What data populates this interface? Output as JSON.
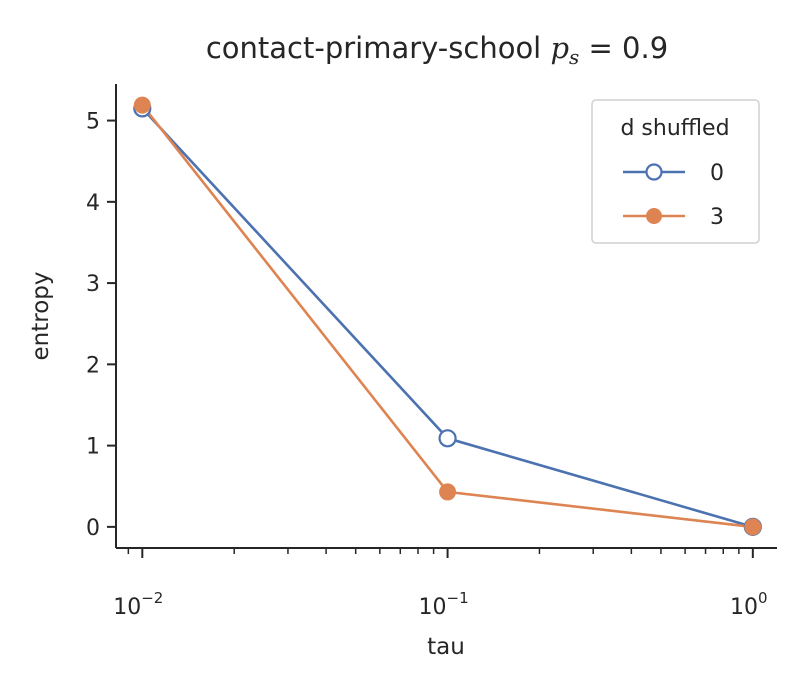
{
  "chart_data": {
    "type": "line",
    "title_main": "contact-primary-school ",
    "title_math_var": "p",
    "title_math_sub": "s",
    "title_math_rest": " = 0.9",
    "xlabel": "tau",
    "ylabel": "entropy",
    "xscale": "log",
    "xlim": [
      0.0082,
      1.2
    ],
    "ylim": [
      -0.26,
      5.45
    ],
    "x_tick_base": "10",
    "x_ticks": [
      {
        "value": 0.01,
        "exp": "−2"
      },
      {
        "value": 0.1,
        "exp": "−1"
      },
      {
        "value": 1,
        "exp": "0"
      }
    ],
    "y_ticks": [
      {
        "value": 0,
        "label": "0"
      },
      {
        "value": 1,
        "label": "1"
      },
      {
        "value": 2,
        "label": "2"
      },
      {
        "value": 3,
        "label": "3"
      },
      {
        "value": 4,
        "label": "4"
      },
      {
        "value": 5,
        "label": "5"
      }
    ],
    "grid": false,
    "legend": {
      "title": "d shuffled",
      "placement": "top-right"
    },
    "x": [
      0.01,
      0.1,
      1
    ],
    "series": [
      {
        "name": "0",
        "values": [
          5.15,
          1.09,
          0.0
        ],
        "color": "#4c72b0",
        "marker": "hollow-circle"
      },
      {
        "name": "3",
        "values": [
          5.19,
          0.43,
          0.0
        ],
        "color": "#dd8452",
        "marker": "filled-circle"
      }
    ]
  }
}
